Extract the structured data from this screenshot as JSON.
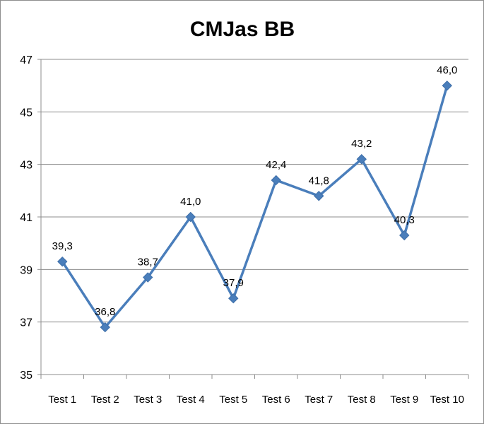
{
  "chart_data": {
    "type": "line",
    "title": "CMJas BB",
    "xlabel": "",
    "ylabel": "",
    "categories": [
      "Test 1",
      "Test 2",
      "Test 3",
      "Test 4",
      "Test 5",
      "Test 6",
      "Test 7",
      "Test 8",
      "Test 9",
      "Test 10"
    ],
    "series": [
      {
        "values": [
          39.3,
          36.8,
          38.7,
          41.0,
          37.9,
          42.4,
          41.8,
          43.2,
          40.3,
          46.0
        ],
        "labels": [
          "39,3",
          "36,8",
          "38,7",
          "41,0",
          "37,9",
          "42,4",
          "41,8",
          "43,2",
          "40,3",
          "46,0"
        ],
        "color": "#4a7ebb",
        "marker": "diamond"
      }
    ],
    "ylim": [
      35,
      47
    ],
    "yticks": [
      "35",
      "37",
      "39",
      "41",
      "43",
      "45",
      "47"
    ],
    "grid": "horizontal",
    "legend": "none"
  }
}
